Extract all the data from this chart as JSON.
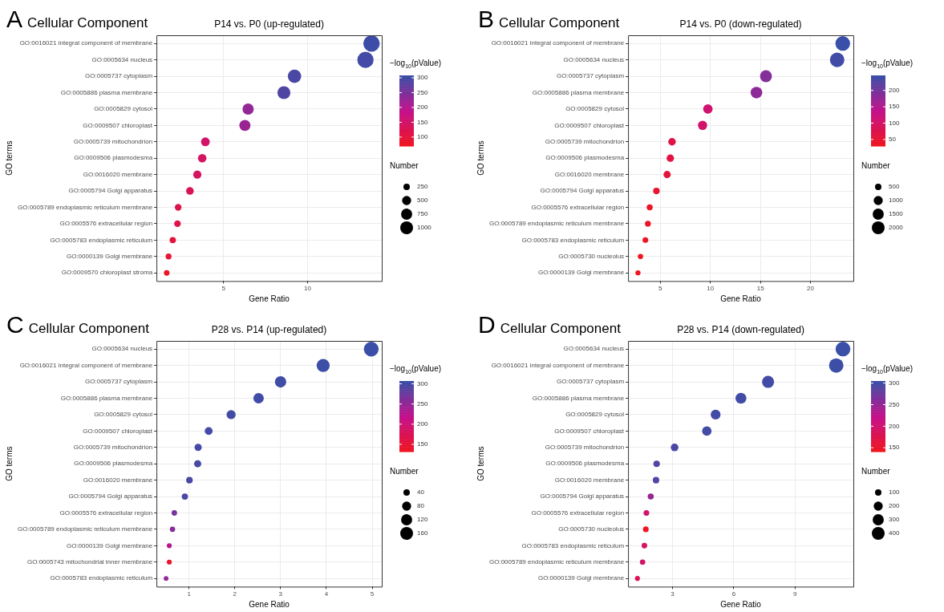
{
  "chart_data": [
    {
      "type": "bubble",
      "orientation": "horizontal",
      "annotations": [
        "A",
        "Cellular Component"
      ],
      "title": "P14 vs. P0 (up-regulated)",
      "xlabel": "Gene Ratio",
      "ylabel": "GO terms",
      "grid": true,
      "categories": [
        "GO:0016021 integral component of membrane",
        "GO:0005634 nucleus",
        "GO:0005737 cytoplasm",
        "GO:0005886 plasma membrane",
        "GO:0005829 cytosol",
        "GO:0009507 chloroplast",
        "GO:0005739 mitochondrion",
        "GO:0009506 plasmodesma",
        "GO:0016020 membrane",
        "GO:0005794 Golgi apparatus",
        "GO:0005789 endoplasmic reticulum membrane",
        "GO:0005576 extracellular region",
        "GO:0005783 endoplasmic reticulum",
        "GO:0000139 Golgi membrane",
        "GO:0009570 chloroplast stroma"
      ],
      "values": [
        13.8,
        13.44,
        9.22,
        8.59,
        6.46,
        6.27,
        3.92,
        3.73,
        3.44,
        3.0,
        2.3,
        2.26,
        1.98,
        1.73,
        1.62
      ],
      "sizes": [
        1640,
        1600,
        1100,
        1020,
        770,
        750,
        470,
        440,
        410,
        360,
        270,
        270,
        240,
        210,
        190
      ],
      "cvalues": [
        305,
        300,
        295,
        290,
        230,
        225,
        150,
        145,
        140,
        135,
        120,
        115,
        105,
        95,
        75
      ],
      "xlim": [
        1.01,
        14.41
      ],
      "xticks": [
        5,
        10
      ],
      "clabel": "−log$_{10}$(pValue)",
      "clim": [
        70,
        308
      ],
      "cticks": [
        100,
        150,
        200,
        250,
        300
      ],
      "legend_title": "Number",
      "size_legend": [
        250,
        500,
        750,
        1000
      ]
    },
    {
      "type": "bubble",
      "orientation": "horizontal",
      "annotations": [
        "B",
        "Cellular Component"
      ],
      "title": "P14 vs. P0 (down-regulated)",
      "xlabel": "Gene Ratio",
      "ylabel": "GO terms",
      "grid": true,
      "categories": [
        "GO:0016021 integral component of membrane",
        "GO:0005634 nucleus",
        "GO:0005737 cytoplasm",
        "GO:0005886 plasma membrane",
        "GO:0005829 cytosol",
        "GO:0009507 chloroplast",
        "GO:0005739 mitochondrion",
        "GO:0009506 plasmodesma",
        "GO:0016020 membrane",
        "GO:0005794 Golgi apparatus",
        "GO:0005576 extracellular region",
        "GO:0005789 endoplasmic reticulum membrane",
        "GO:0005783 endoplasmic reticulum",
        "GO:0005730 nucleolus",
        "GO:0000139 Golgi membrane"
      ],
      "values": [
        23.22,
        22.66,
        15.55,
        14.6,
        9.75,
        9.22,
        6.17,
        6.0,
        5.68,
        4.61,
        3.94,
        3.76,
        3.51,
        3.02,
        2.77
      ],
      "sizes": [
        2600,
        2540,
        1740,
        1640,
        1090,
        1030,
        690,
        670,
        640,
        520,
        440,
        420,
        390,
        340,
        310
      ],
      "cvalues": [
        246,
        240,
        190,
        180,
        110,
        105,
        70,
        65,
        60,
        50,
        40,
        40,
        35,
        32,
        30
      ],
      "xlim": [
        1.78,
        24.28
      ],
      "xticks": [
        5,
        10,
        15,
        20
      ],
      "clabel": "−log$_{10}$(pValue)",
      "clim": [
        30,
        246
      ],
      "cticks": [
        50,
        100,
        150,
        200
      ],
      "legend_title": "Number",
      "size_legend": [
        500,
        1000,
        1500,
        2000
      ]
    },
    {
      "type": "bubble",
      "orientation": "horizontal",
      "annotations": [
        "C",
        "Cellular Component"
      ],
      "title": "P28 vs. P14 (up-regulated)",
      "xlabel": "Gene Ratio",
      "ylabel": "GO terms",
      "grid": true,
      "categories": [
        "GO:0005634 nucleus",
        "GO:0016021 integral component of membrane",
        "GO:0005737 cytoplasm",
        "GO:0005886 plasma membrane",
        "GO:0005829 cytosol",
        "GO:0009507 chloroplast",
        "GO:0005739 mitochondrion",
        "GO:0009506 plasmodesma",
        "GO:0016020 membrane",
        "GO:0005794 Golgi apparatus",
        "GO:0005576 extracellular region",
        "GO:0005789 endoplasmic reticulum membrane",
        "GO:0000139 Golgi membrane",
        "GO:0005743 mitochondrial inner membrane",
        "GO:0005783 endoplasmic reticulum"
      ],
      "values": [
        4.98,
        3.93,
        3.0,
        2.52,
        1.92,
        1.43,
        1.2,
        1.19,
        1.01,
        0.91,
        0.68,
        0.64,
        0.57,
        0.57,
        0.5
      ],
      "sizes": [
        210,
        165,
        126,
        106,
        81,
        60,
        50,
        50,
        42,
        38,
        29,
        27,
        24,
        24,
        21
      ],
      "cvalues": [
        307,
        305,
        304,
        303,
        302,
        300,
        300,
        299,
        298,
        295,
        270,
        260,
        230,
        140,
        250
      ],
      "xlim": [
        0.29,
        5.21
      ],
      "xticks": [
        1,
        2,
        3,
        4,
        5
      ],
      "clabel": "−log$_{10}$(pValue)",
      "clim": [
        132,
        307
      ],
      "cticks": [
        150,
        200,
        250,
        300
      ],
      "legend_title": "Number",
      "size_legend": [
        40,
        80,
        120,
        160
      ]
    },
    {
      "type": "bubble",
      "orientation": "horizontal",
      "annotations": [
        "D",
        "Cellular Component"
      ],
      "title": "P28 vs. P14 (down-regulated)",
      "xlabel": "Gene Ratio",
      "ylabel": "GO terms",
      "grid": true,
      "categories": [
        "GO:0005634 nucleus",
        "GO:0016021 integral component of membrane",
        "GO:0005737 cytoplasm",
        "GO:0005886 plasma membrane",
        "GO:0005829 cytosol",
        "GO:0009507 chloroplast",
        "GO:0005739 mitochondrion",
        "GO:0009506 plasmodesma",
        "GO:0016020 membrane",
        "GO:0005794 Golgi apparatus",
        "GO:0005576 extracellular region",
        "GO:0005730 nucleolus",
        "GO:0005783 endoplasmic reticulum",
        "GO:0005789 endoplasmic reticulum membrane",
        "GO:0000139 Golgi membrane"
      ],
      "values": [
        11.35,
        11.02,
        7.68,
        6.35,
        5.11,
        4.68,
        3.1,
        2.22,
        2.19,
        1.93,
        1.72,
        1.69,
        1.62,
        1.53,
        1.28
      ],
      "sizes": [
        522,
        507,
        353,
        292,
        235,
        215,
        143,
        102,
        101,
        89,
        79,
        78,
        75,
        70,
        59
      ],
      "cvalues": [
        305,
        303,
        300,
        300,
        300,
        300,
        295,
        290,
        290,
        250,
        200,
        145,
        190,
        195,
        180
      ],
      "xlim": [
        0.82,
        11.86
      ],
      "xticks": [
        3,
        6,
        9
      ],
      "clabel": "−log$_{10}$(pValue)",
      "clim": [
        141,
        305
      ],
      "cticks": [
        150,
        200,
        250,
        300
      ],
      "legend_title": "Number",
      "size_legend": [
        100,
        200,
        300,
        400
      ]
    }
  ]
}
